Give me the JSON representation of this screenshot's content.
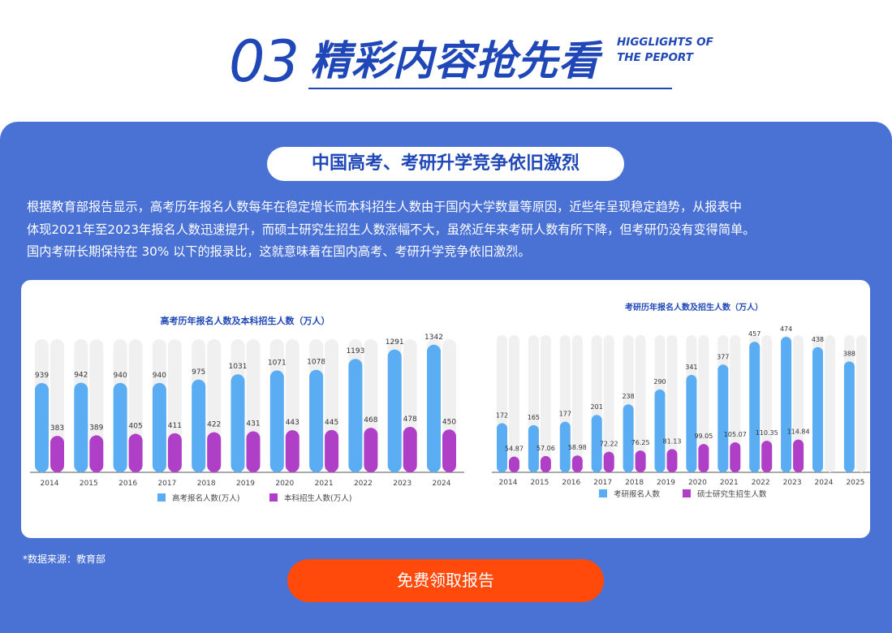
{
  "header": {
    "number": "03",
    "title": "精彩内容抢先看",
    "subtitle_line1": "HIGGLIGHTS OF",
    "subtitle_line2": "THE PEPORT"
  },
  "section": {
    "pill_title": "中国高考、考研升学竞争依旧激烈",
    "desc_lines": [
      "根据教育部报告显示，高考历年报名人数每年在稳定增长而本科招生人数由于国内大学数量等原因，近些年呈现稳定趋势，从报表中",
      "体现2021年至2023年报名人数迅速提升，而硕士研究生招生人数涨幅不大，虽然近年来考研人数有所下降，但考研仍没有变得简单。",
      "国内考研长期保持在 30% 以下的报录比，这就意味着在国内高考、考研升学竞争依旧激烈。"
    ],
    "source_note": "*数据来源：教育部",
    "cta_label": "免费领取报告"
  },
  "colors": {
    "brand_blue": "#1f47b8",
    "panel_blue": "#4a72d4",
    "bar_blue": "#5aadf2",
    "bar_purple": "#b03fc7",
    "bar_track": "#f0f0f0",
    "cta_orange": "#ff4a0c"
  },
  "chart_data": [
    {
      "type": "bar",
      "title": "高考历年报名人数及本科招生人数（万人）",
      "categories": [
        "2014",
        "2015",
        "2016",
        "2017",
        "2018",
        "2019",
        "2020",
        "2021",
        "2022",
        "2023",
        "2024"
      ],
      "series": [
        {
          "name": "高考报名人数(万人)",
          "values": [
            939,
            942,
            940,
            940,
            975,
            1031,
            1071,
            1078,
            1193,
            1291,
            1342
          ]
        },
        {
          "name": "本科招生人数(万人)",
          "values": [
            383,
            389,
            405,
            411,
            422,
            431,
            443,
            445,
            468,
            478,
            450
          ]
        }
      ],
      "ylim": [
        0,
        1400
      ],
      "grid": false,
      "legend": "bottom-center"
    },
    {
      "type": "bar",
      "title": "考研历年报名人数及招生人数（万人）",
      "categories": [
        "2014",
        "2015",
        "2016",
        "2017",
        "2018",
        "2019",
        "2020",
        "2021",
        "2022",
        "2023",
        "2024",
        "2025"
      ],
      "series": [
        {
          "name": "考研报名人数",
          "values": [
            172,
            165,
            177,
            201,
            238,
            290,
            341,
            377,
            457,
            474,
            438,
            388
          ]
        },
        {
          "name": "硕士研究生招生人数",
          "values": [
            54.87,
            57.06,
            58.98,
            72.22,
            76.25,
            81.13,
            99.05,
            105.07,
            110.35,
            114.84,
            null,
            null
          ]
        }
      ],
      "ylim": [
        0,
        480
      ],
      "grid": false,
      "legend": "bottom-center"
    }
  ]
}
